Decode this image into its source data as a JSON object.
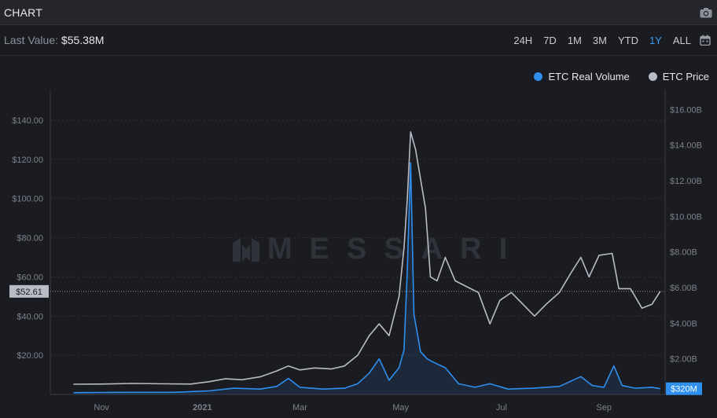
{
  "header": {
    "title": "CHART"
  },
  "toolbar": {
    "last_value_label": "Last Value:",
    "last_value": "$55.38M",
    "ranges": [
      "24H",
      "7D",
      "1M",
      "3M",
      "YTD",
      "1Y",
      "ALL"
    ],
    "active_range": "1Y"
  },
  "watermark": "MESSARI",
  "colors": {
    "volume": "#2f8fef",
    "price": "#b9bcc4",
    "background": "#1b1c21"
  },
  "icons": [
    "camera-icon",
    "calendar-icon",
    "messari-logo-icon"
  ],
  "chart_data": {
    "type": "line",
    "legend": [
      {
        "name": "ETC Real Volume",
        "color": "#2f8fef"
      },
      {
        "name": "ETC Price",
        "color": "#b9bcc4"
      }
    ],
    "legend_position": "top-right",
    "x_ticks": [
      "Nov",
      "2021",
      "Mar",
      "May",
      "Jul",
      "Sep"
    ],
    "y_left_ticks": [
      "$20.00",
      "$40.00",
      "$60.00",
      "$80.00",
      "$100.00",
      "$120.00",
      "$140.00"
    ],
    "y_left_range": [
      0,
      150
    ],
    "y_right_ticks": [
      "$2.00B",
      "$4.00B",
      "$6.00B",
      "$8.00B",
      "$10.00B",
      "$12.00B",
      "$14.00B",
      "$16.00B"
    ],
    "y_right_range": [
      0,
      16.5
    ],
    "price_last_label": "$52.61",
    "volume_last_label": "$320M",
    "grid": true,
    "series": [
      {
        "name": "ETC Price",
        "axis": "left",
        "unit": "USD",
        "points": [
          [
            "2020-10-15",
            5.2
          ],
          [
            "2020-11-01",
            5.3
          ],
          [
            "2020-11-20",
            5.6
          ],
          [
            "2020-12-10",
            5.4
          ],
          [
            "2020-12-25",
            5.3
          ],
          [
            "2021-01-05",
            6.5
          ],
          [
            "2021-01-15",
            8.0
          ],
          [
            "2021-01-25",
            7.5
          ],
          [
            "2021-02-05",
            9.0
          ],
          [
            "2021-02-15",
            12.0
          ],
          [
            "2021-02-22",
            14.5
          ],
          [
            "2021-03-01",
            12.5
          ],
          [
            "2021-03-10",
            13.5
          ],
          [
            "2021-03-20",
            13.0
          ],
          [
            "2021-03-28",
            14.5
          ],
          [
            "2021-04-05",
            20.0
          ],
          [
            "2021-04-12",
            30.0
          ],
          [
            "2021-04-18",
            36.0
          ],
          [
            "2021-04-24",
            30.0
          ],
          [
            "2021-04-30",
            50.0
          ],
          [
            "2021-05-03",
            75.0
          ],
          [
            "2021-05-05",
            100.0
          ],
          [
            "2021-05-07",
            134.0
          ],
          [
            "2021-05-10",
            125.0
          ],
          [
            "2021-05-13",
            110.0
          ],
          [
            "2021-05-16",
            95.0
          ],
          [
            "2021-05-19",
            60.0
          ],
          [
            "2021-05-23",
            58.0
          ],
          [
            "2021-05-28",
            70.0
          ],
          [
            "2021-06-03",
            58.0
          ],
          [
            "2021-06-10",
            55.0
          ],
          [
            "2021-06-17",
            52.0
          ],
          [
            "2021-06-24",
            36.0
          ],
          [
            "2021-06-30",
            48.0
          ],
          [
            "2021-07-07",
            52.0
          ],
          [
            "2021-07-14",
            46.0
          ],
          [
            "2021-07-21",
            40.0
          ],
          [
            "2021-07-28",
            46.0
          ],
          [
            "2021-08-05",
            52.0
          ],
          [
            "2021-08-12",
            62.0
          ],
          [
            "2021-08-18",
            70.0
          ],
          [
            "2021-08-23",
            60.0
          ],
          [
            "2021-08-29",
            71.0
          ],
          [
            "2021-09-06",
            72.0
          ],
          [
            "2021-09-10",
            54.0
          ],
          [
            "2021-09-17",
            54.0
          ],
          [
            "2021-09-24",
            44.0
          ],
          [
            "2021-09-30",
            46.0
          ],
          [
            "2021-10-05",
            52.6
          ]
        ]
      },
      {
        "name": "ETC Real Volume",
        "axis": "right",
        "unit": "USD billions",
        "points": [
          [
            "2020-10-15",
            0.1
          ],
          [
            "2020-11-15",
            0.12
          ],
          [
            "2020-12-15",
            0.12
          ],
          [
            "2021-01-05",
            0.2
          ],
          [
            "2021-01-20",
            0.35
          ],
          [
            "2021-02-05",
            0.3
          ],
          [
            "2021-02-15",
            0.45
          ],
          [
            "2021-02-22",
            0.9
          ],
          [
            "2021-03-01",
            0.4
          ],
          [
            "2021-03-15",
            0.3
          ],
          [
            "2021-03-28",
            0.35
          ],
          [
            "2021-04-05",
            0.6
          ],
          [
            "2021-04-12",
            1.2
          ],
          [
            "2021-04-18",
            2.0
          ],
          [
            "2021-04-24",
            0.8
          ],
          [
            "2021-04-30",
            1.5
          ],
          [
            "2021-05-03",
            2.5
          ],
          [
            "2021-05-05",
            7.0
          ],
          [
            "2021-05-07",
            13.0
          ],
          [
            "2021-05-09",
            4.5
          ],
          [
            "2021-05-13",
            2.4
          ],
          [
            "2021-05-17",
            2.0
          ],
          [
            "2021-05-21",
            1.8
          ],
          [
            "2021-05-28",
            1.5
          ],
          [
            "2021-06-05",
            0.6
          ],
          [
            "2021-06-15",
            0.4
          ],
          [
            "2021-06-24",
            0.6
          ],
          [
            "2021-07-05",
            0.3
          ],
          [
            "2021-07-20",
            0.35
          ],
          [
            "2021-08-05",
            0.45
          ],
          [
            "2021-08-18",
            1.0
          ],
          [
            "2021-08-25",
            0.5
          ],
          [
            "2021-09-01",
            0.4
          ],
          [
            "2021-09-07",
            1.6
          ],
          [
            "2021-09-12",
            0.5
          ],
          [
            "2021-09-20",
            0.35
          ],
          [
            "2021-09-30",
            0.4
          ],
          [
            "2021-10-05",
            0.32
          ]
        ]
      }
    ]
  }
}
